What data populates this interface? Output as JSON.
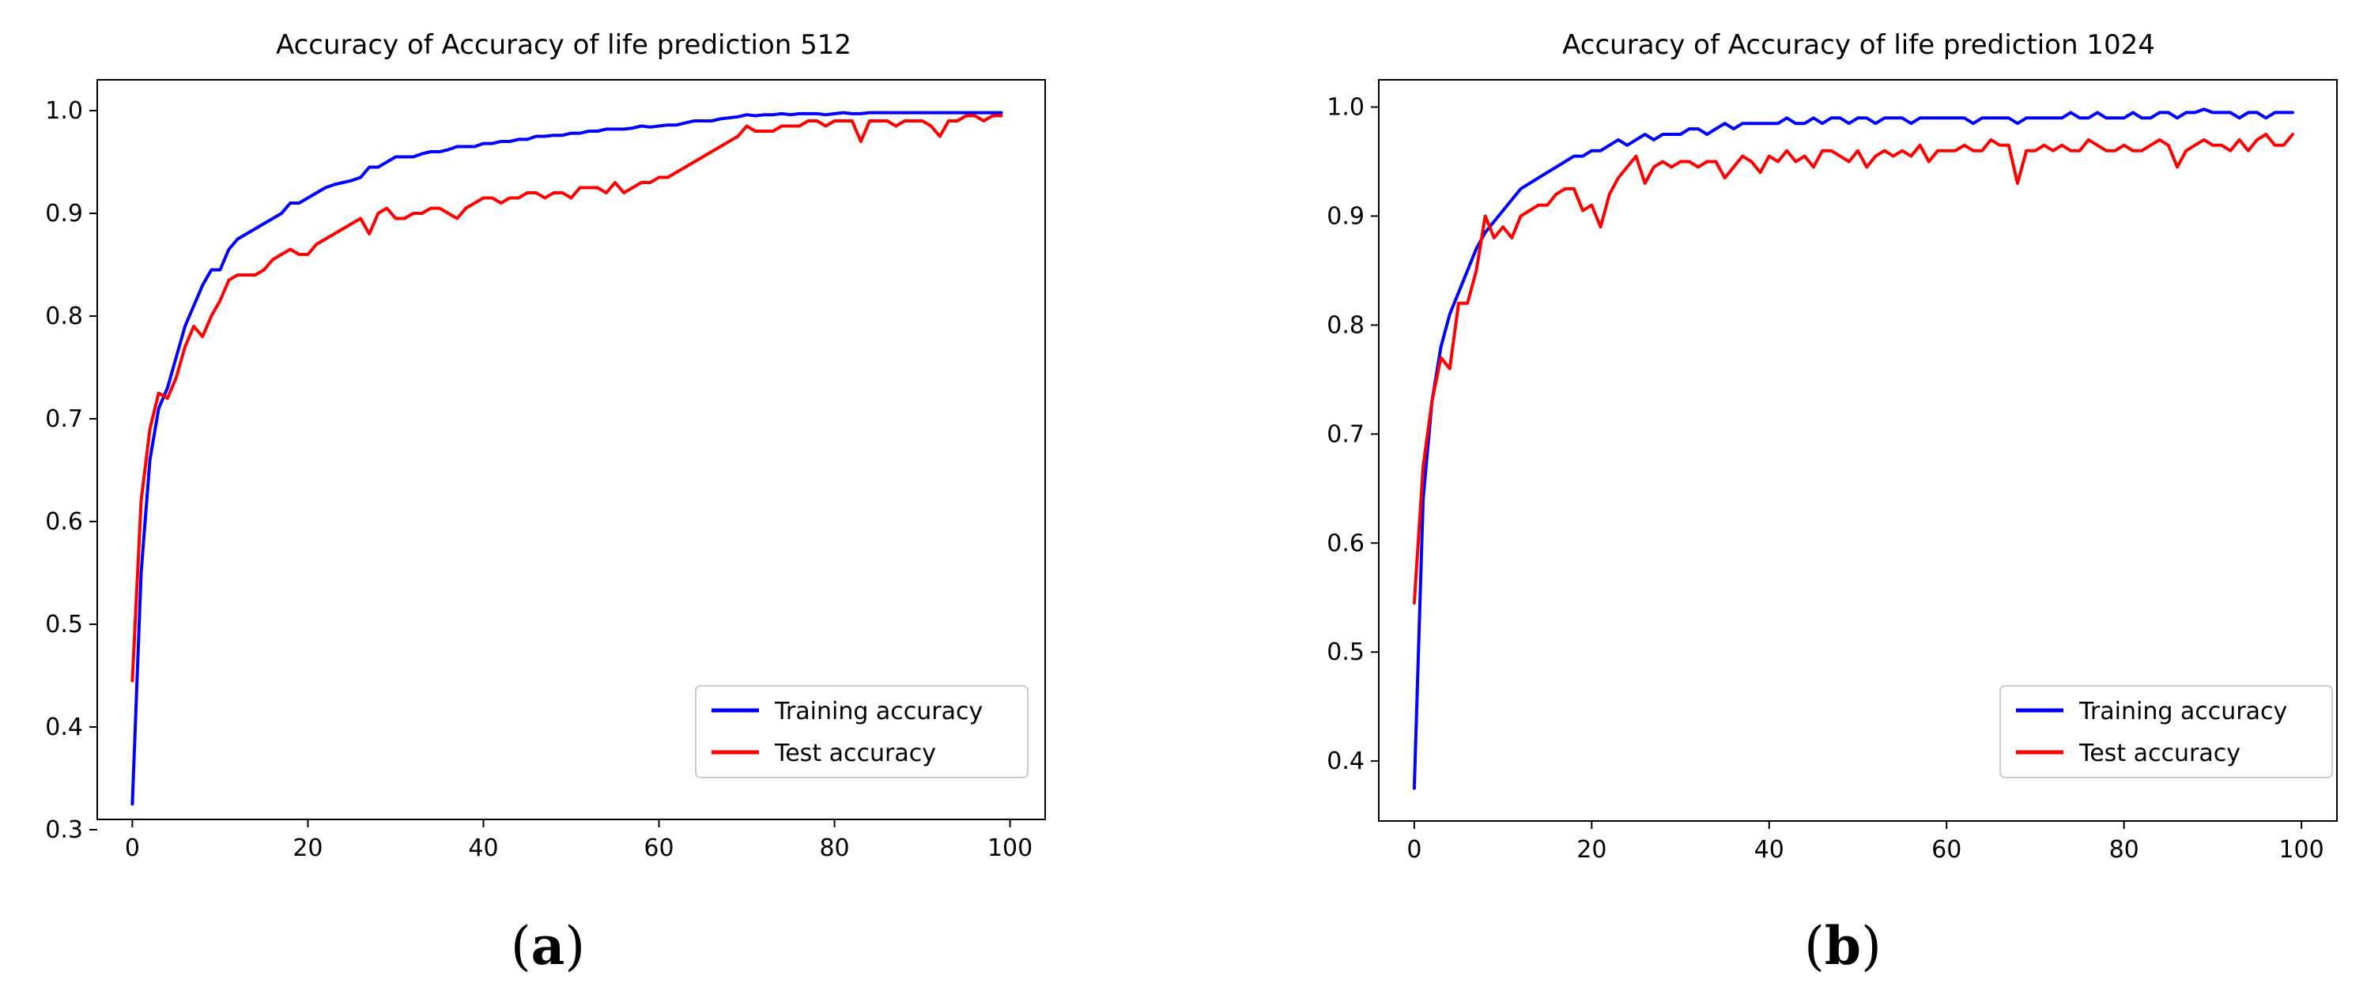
{
  "chart_data": [
    {
      "type": "line",
      "title": "Accuracy of Accuracy of life prediction 512",
      "panel_label": "a",
      "xlabel": "",
      "ylabel": "",
      "xlim": [
        -4,
        104
      ],
      "ylim": [
        0.31,
        1.03
      ],
      "xticks": [
        0,
        20,
        40,
        60,
        80,
        100
      ],
      "yticks": [
        0.3,
        0.4,
        0.5,
        0.6,
        0.7,
        0.8,
        0.9,
        1.0
      ],
      "ytick_labels": [
        "0.3",
        "0.4",
        "0.5",
        "0.6",
        "0.7",
        "0.8",
        "0.9",
        "1.0"
      ],
      "grid": false,
      "legend_position": "lower-right",
      "series": [
        {
          "name": "Training accuracy",
          "color": "#0000ff",
          "x": [
            0,
            1,
            2,
            3,
            4,
            5,
            6,
            7,
            8,
            9,
            10,
            11,
            12,
            13,
            14,
            15,
            16,
            17,
            18,
            19,
            20,
            21,
            22,
            23,
            24,
            25,
            26,
            27,
            28,
            29,
            30,
            31,
            32,
            33,
            34,
            35,
            36,
            37,
            38,
            39,
            40,
            41,
            42,
            43,
            44,
            45,
            46,
            47,
            48,
            49,
            50,
            51,
            52,
            53,
            54,
            55,
            56,
            57,
            58,
            59,
            60,
            61,
            62,
            63,
            64,
            65,
            66,
            67,
            68,
            69,
            70,
            71,
            72,
            73,
            74,
            75,
            76,
            77,
            78,
            79,
            80,
            81,
            82,
            83,
            84,
            85,
            86,
            87,
            88,
            89,
            90,
            91,
            92,
            93,
            94,
            95,
            96,
            97,
            98,
            99
          ],
          "y": [
            0.325,
            0.55,
            0.66,
            0.71,
            0.73,
            0.76,
            0.79,
            0.81,
            0.83,
            0.845,
            0.845,
            0.865,
            0.875,
            0.88,
            0.885,
            0.89,
            0.895,
            0.9,
            0.91,
            0.91,
            0.915,
            0.92,
            0.925,
            0.928,
            0.93,
            0.932,
            0.935,
            0.945,
            0.945,
            0.95,
            0.955,
            0.955,
            0.955,
            0.958,
            0.96,
            0.96,
            0.962,
            0.965,
            0.965,
            0.965,
            0.968,
            0.968,
            0.97,
            0.97,
            0.972,
            0.972,
            0.975,
            0.975,
            0.976,
            0.976,
            0.978,
            0.978,
            0.98,
            0.98,
            0.982,
            0.982,
            0.982,
            0.983,
            0.985,
            0.984,
            0.985,
            0.986,
            0.986,
            0.988,
            0.99,
            0.99,
            0.99,
            0.992,
            0.993,
            0.994,
            0.996,
            0.995,
            0.996,
            0.996,
            0.997,
            0.996,
            0.997,
            0.997,
            0.997,
            0.996,
            0.997,
            0.998,
            0.997,
            0.997,
            0.998,
            0.998,
            0.998,
            0.998,
            0.998,
            0.998,
            0.998,
            0.998,
            0.998,
            0.998,
            0.998,
            0.998,
            0.998,
            0.998,
            0.998,
            0.998
          ]
        },
        {
          "name": "Test accuracy",
          "color": "#ff0000",
          "x": [
            0,
            1,
            2,
            3,
            4,
            5,
            6,
            7,
            8,
            9,
            10,
            11,
            12,
            13,
            14,
            15,
            16,
            17,
            18,
            19,
            20,
            21,
            22,
            23,
            24,
            25,
            26,
            27,
            28,
            29,
            30,
            31,
            32,
            33,
            34,
            35,
            36,
            37,
            38,
            39,
            40,
            41,
            42,
            43,
            44,
            45,
            46,
            47,
            48,
            49,
            50,
            51,
            52,
            53,
            54,
            55,
            56,
            57,
            58,
            59,
            60,
            61,
            62,
            63,
            64,
            65,
            66,
            67,
            68,
            69,
            70,
            71,
            72,
            73,
            74,
            75,
            76,
            77,
            78,
            79,
            80,
            81,
            82,
            83,
            84,
            85,
            86,
            87,
            88,
            89,
            90,
            91,
            92,
            93,
            94,
            95,
            96,
            97,
            98,
            99
          ],
          "y": [
            0.445,
            0.62,
            0.69,
            0.725,
            0.72,
            0.74,
            0.77,
            0.79,
            0.78,
            0.8,
            0.815,
            0.835,
            0.84,
            0.84,
            0.84,
            0.845,
            0.855,
            0.86,
            0.865,
            0.86,
            0.86,
            0.87,
            0.875,
            0.88,
            0.885,
            0.89,
            0.895,
            0.88,
            0.9,
            0.905,
            0.895,
            0.895,
            0.9,
            0.9,
            0.905,
            0.905,
            0.9,
            0.895,
            0.905,
            0.91,
            0.915,
            0.915,
            0.91,
            0.915,
            0.915,
            0.92,
            0.92,
            0.915,
            0.92,
            0.92,
            0.915,
            0.925,
            0.925,
            0.925,
            0.92,
            0.93,
            0.92,
            0.925,
            0.93,
            0.93,
            0.935,
            0.935,
            0.94,
            0.945,
            0.95,
            0.955,
            0.96,
            0.965,
            0.97,
            0.975,
            0.985,
            0.98,
            0.98,
            0.98,
            0.985,
            0.985,
            0.985,
            0.99,
            0.99,
            0.985,
            0.99,
            0.99,
            0.99,
            0.97,
            0.99,
            0.99,
            0.99,
            0.985,
            0.99,
            0.99,
            0.99,
            0.985,
            0.975,
            0.99,
            0.99,
            0.995,
            0.995,
            0.99,
            0.995,
            0.995
          ]
        }
      ]
    },
    {
      "type": "line",
      "title": "Accuracy of Accuracy of life prediction 1024",
      "panel_label": "b",
      "xlabel": "",
      "ylabel": "",
      "xlim": [
        -4,
        104
      ],
      "ylim": [
        0.345,
        1.025
      ],
      "xticks": [
        0,
        20,
        40,
        60,
        80,
        100
      ],
      "yticks": [
        0.4,
        0.5,
        0.6,
        0.7,
        0.8,
        0.9,
        1.0
      ],
      "ytick_labels": [
        "0.4",
        "0.5",
        "0.6",
        "0.7",
        "0.8",
        "0.9",
        "1.0"
      ],
      "grid": false,
      "legend_position": "lower-right",
      "series": [
        {
          "name": "Training accuracy",
          "color": "#0000ff",
          "x": [
            0,
            1,
            2,
            3,
            4,
            5,
            6,
            7,
            8,
            9,
            10,
            11,
            12,
            13,
            14,
            15,
            16,
            17,
            18,
            19,
            20,
            21,
            22,
            23,
            24,
            25,
            26,
            27,
            28,
            29,
            30,
            31,
            32,
            33,
            34,
            35,
            36,
            37,
            38,
            39,
            40,
            41,
            42,
            43,
            44,
            45,
            46,
            47,
            48,
            49,
            50,
            51,
            52,
            53,
            54,
            55,
            56,
            57,
            58,
            59,
            60,
            61,
            62,
            63,
            64,
            65,
            66,
            67,
            68,
            69,
            70,
            71,
            72,
            73,
            74,
            75,
            76,
            77,
            78,
            79,
            80,
            81,
            82,
            83,
            84,
            85,
            86,
            87,
            88,
            89,
            90,
            91,
            92,
            93,
            94,
            95,
            96,
            97,
            98,
            99
          ],
          "y": [
            0.375,
            0.64,
            0.73,
            0.78,
            0.81,
            0.83,
            0.85,
            0.87,
            0.885,
            0.895,
            0.905,
            0.915,
            0.925,
            0.93,
            0.935,
            0.94,
            0.945,
            0.95,
            0.955,
            0.955,
            0.96,
            0.96,
            0.965,
            0.97,
            0.965,
            0.97,
            0.975,
            0.97,
            0.975,
            0.975,
            0.975,
            0.98,
            0.98,
            0.975,
            0.98,
            0.985,
            0.98,
            0.985,
            0.985,
            0.985,
            0.985,
            0.985,
            0.99,
            0.985,
            0.985,
            0.99,
            0.985,
            0.99,
            0.99,
            0.985,
            0.99,
            0.99,
            0.985,
            0.99,
            0.99,
            0.99,
            0.985,
            0.99,
            0.99,
            0.99,
            0.99,
            0.99,
            0.99,
            0.985,
            0.99,
            0.99,
            0.99,
            0.99,
            0.985,
            0.99,
            0.99,
            0.99,
            0.99,
            0.99,
            0.995,
            0.99,
            0.99,
            0.995,
            0.99,
            0.99,
            0.99,
            0.995,
            0.99,
            0.99,
            0.995,
            0.995,
            0.99,
            0.995,
            0.995,
            0.998,
            0.995,
            0.995,
            0.995,
            0.99,
            0.995,
            0.995,
            0.99,
            0.995,
            0.995,
            0.995
          ]
        },
        {
          "name": "Test accuracy",
          "color": "#ff0000",
          "x": [
            0,
            1,
            2,
            3,
            4,
            5,
            6,
            7,
            8,
            9,
            10,
            11,
            12,
            13,
            14,
            15,
            16,
            17,
            18,
            19,
            20,
            21,
            22,
            23,
            24,
            25,
            26,
            27,
            28,
            29,
            30,
            31,
            32,
            33,
            34,
            35,
            36,
            37,
            38,
            39,
            40,
            41,
            42,
            43,
            44,
            45,
            46,
            47,
            48,
            49,
            50,
            51,
            52,
            53,
            54,
            55,
            56,
            57,
            58,
            59,
            60,
            61,
            62,
            63,
            64,
            65,
            66,
            67,
            68,
            69,
            70,
            71,
            72,
            73,
            74,
            75,
            76,
            77,
            78,
            79,
            80,
            81,
            82,
            83,
            84,
            85,
            86,
            87,
            88,
            89,
            90,
            91,
            92,
            93,
            94,
            95,
            96,
            97,
            98,
            99
          ],
          "y": [
            0.545,
            0.67,
            0.73,
            0.77,
            0.76,
            0.82,
            0.82,
            0.85,
            0.9,
            0.88,
            0.89,
            0.88,
            0.9,
            0.905,
            0.91,
            0.91,
            0.92,
            0.925,
            0.925,
            0.905,
            0.91,
            0.89,
            0.92,
            0.935,
            0.945,
            0.955,
            0.93,
            0.945,
            0.95,
            0.945,
            0.95,
            0.95,
            0.945,
            0.95,
            0.95,
            0.935,
            0.945,
            0.955,
            0.95,
            0.94,
            0.955,
            0.95,
            0.96,
            0.95,
            0.955,
            0.945,
            0.96,
            0.96,
            0.955,
            0.95,
            0.96,
            0.945,
            0.955,
            0.96,
            0.955,
            0.96,
            0.955,
            0.965,
            0.95,
            0.96,
            0.96,
            0.96,
            0.965,
            0.96,
            0.96,
            0.97,
            0.965,
            0.965,
            0.93,
            0.96,
            0.96,
            0.965,
            0.96,
            0.965,
            0.96,
            0.96,
            0.97,
            0.965,
            0.96,
            0.96,
            0.965,
            0.96,
            0.96,
            0.965,
            0.97,
            0.965,
            0.945,
            0.96,
            0.965,
            0.97,
            0.965,
            0.965,
            0.96,
            0.97,
            0.96,
            0.97,
            0.975,
            0.965,
            0.965,
            0.975
          ]
        }
      ]
    }
  ]
}
